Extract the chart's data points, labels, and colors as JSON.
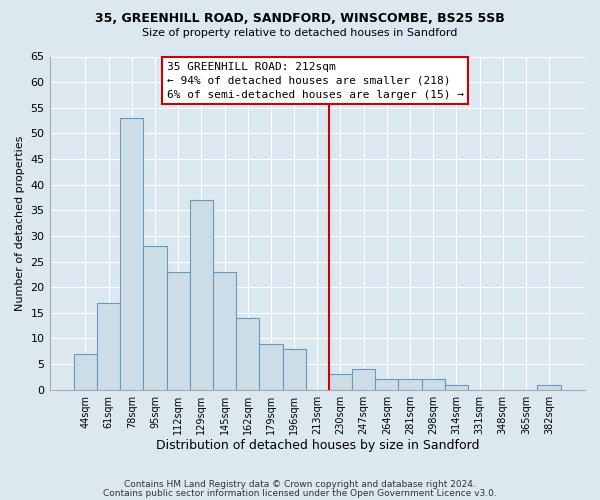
{
  "title1": "35, GREENHILL ROAD, SANDFORD, WINSCOMBE, BS25 5SB",
  "title2": "Size of property relative to detached houses in Sandford",
  "xlabel": "Distribution of detached houses by size in Sandford",
  "ylabel": "Number of detached properties",
  "footer1": "Contains HM Land Registry data © Crown copyright and database right 2024.",
  "footer2": "Contains public sector information licensed under the Open Government Licence v3.0.",
  "bin_labels": [
    "44sqm",
    "61sqm",
    "78sqm",
    "95sqm",
    "112sqm",
    "129sqm",
    "145sqm",
    "162sqm",
    "179sqm",
    "196sqm",
    "213sqm",
    "230sqm",
    "247sqm",
    "264sqm",
    "281sqm",
    "298sqm",
    "314sqm",
    "331sqm",
    "348sqm",
    "365sqm",
    "382sqm"
  ],
  "counts": [
    7,
    17,
    53,
    28,
    23,
    37,
    23,
    14,
    9,
    8,
    0,
    3,
    4,
    2,
    2,
    2,
    1,
    0,
    0,
    0,
    1
  ],
  "bar_color": "#ccdde8",
  "bar_edge_color": "#6699bb",
  "vline_color": "#cc0000",
  "annotation_title": "35 GREENHILL ROAD: 212sqm",
  "annotation_line1": "← 94% of detached houses are smaller (218)",
  "annotation_line2": "6% of semi-detached houses are larger (15) →",
  "annotation_box_color": "#ffffff",
  "annotation_box_edge": "#cc0000",
  "ylim": [
    0,
    65
  ],
  "yticks": [
    0,
    5,
    10,
    15,
    20,
    25,
    30,
    35,
    40,
    45,
    50,
    55,
    60,
    65
  ],
  "background_color": "#dce8f0",
  "grid_color": "#ffffff",
  "title1_fontsize": 9.0,
  "title2_fontsize": 8.0
}
